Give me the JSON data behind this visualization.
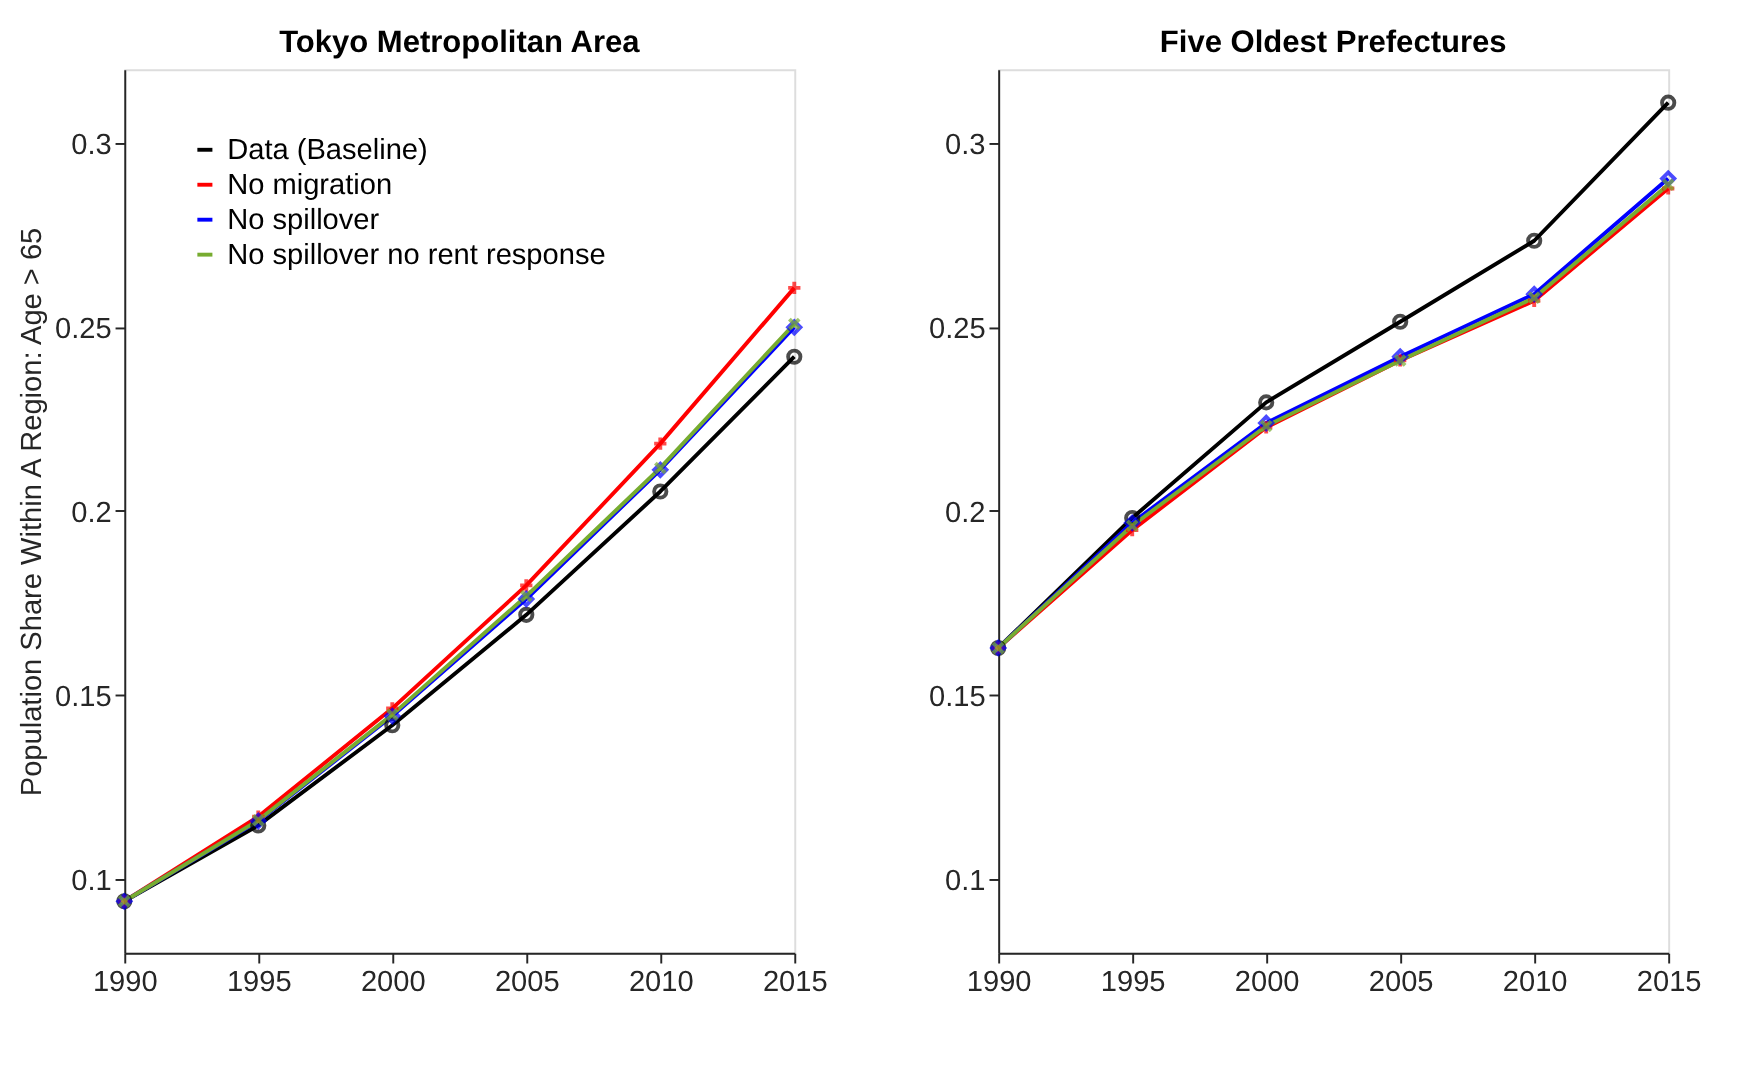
{
  "chart_data": [
    {
      "type": "line",
      "title": "Tokyo Metropolitan Area",
      "ylabel": "Population Share Within A Region: Age > 65",
      "x": [
        1990,
        1995,
        2000,
        2005,
        2010,
        2015
      ],
      "xlim": [
        1990,
        2015
      ],
      "xticks": [
        1990,
        1995,
        2000,
        2005,
        2010,
        2015
      ],
      "ylim": [
        0.08,
        0.32
      ],
      "yticks": [
        0.1,
        0.15,
        0.2,
        0.25,
        0.3
      ],
      "grid": false,
      "legend": "top left",
      "series": [
        {
          "name": "Data (Baseline)",
          "color": "#000000",
          "marker": "circle",
          "values": [
            0.094,
            0.1146,
            0.1418,
            0.1718,
            0.2053,
            0.2419
          ]
        },
        {
          "name": "No migration",
          "color": "#ff0000",
          "marker": "cross",
          "values": [
            0.094,
            0.117,
            0.1464,
            0.1798,
            0.2183,
            0.2606
          ]
        },
        {
          "name": "No spillover",
          "color": "#0000ff",
          "marker": "diamond",
          "values": [
            0.094,
            0.1158,
            0.1443,
            0.1761,
            0.2112,
            0.2499
          ]
        },
        {
          "name": "No spillover no rent response",
          "color": "#77ac30",
          "marker": "x",
          "values": [
            0.094,
            0.116,
            0.1447,
            0.1769,
            0.2117,
            0.2508
          ]
        }
      ]
    },
    {
      "type": "line",
      "title": "Five Oldest Prefectures",
      "x": [
        1990,
        1995,
        2000,
        2005,
        2010,
        2015
      ],
      "xlim": [
        1990,
        2015
      ],
      "xticks": [
        1990,
        1995,
        2000,
        2005,
        2010,
        2015
      ],
      "ylim": [
        0.08,
        0.32
      ],
      "yticks": [
        0.1,
        0.15,
        0.2,
        0.25,
        0.3
      ],
      "grid": false,
      "legend": false,
      "series": [
        {
          "color": "#000000",
          "marker": "circle",
          "values": [
            0.1628,
            0.1981,
            0.2295,
            0.2514,
            0.2734,
            0.3109
          ]
        },
        {
          "color": "#ff0000",
          "marker": "cross",
          "values": [
            0.1628,
            0.1948,
            0.2227,
            0.2409,
            0.2571,
            0.2876
          ]
        },
        {
          "color": "#0000ff",
          "marker": "diamond",
          "values": [
            0.1628,
            0.1968,
            0.2239,
            0.2419,
            0.2589,
            0.2903
          ]
        },
        {
          "color": "#77ac30",
          "marker": "x",
          "values": [
            0.1628,
            0.196,
            0.2231,
            0.2409,
            0.2579,
            0.2886
          ]
        }
      ]
    }
  ]
}
